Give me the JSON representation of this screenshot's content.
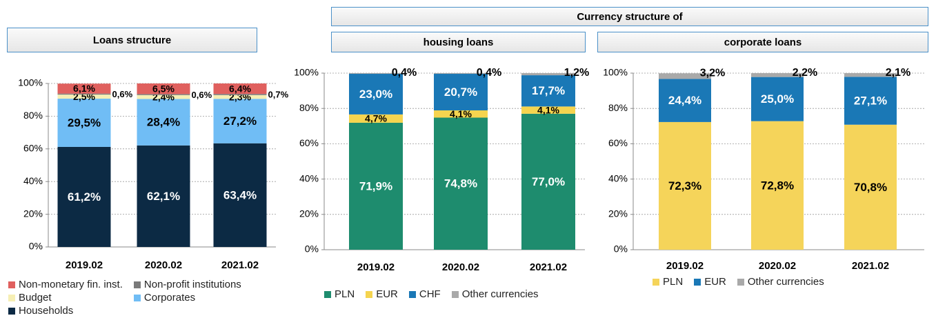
{
  "header": "Currency structure of",
  "chart_data": [
    {
      "type": "bar",
      "stacked": true,
      "title": "Loans structure",
      "categories": [
        "2019.02",
        "2020.02",
        "2021.02"
      ],
      "ylim": [
        0,
        100
      ],
      "yticks": [
        {
          "value": 0,
          "label": "0%"
        },
        {
          "value": 20,
          "label": "20%"
        },
        {
          "value": 40,
          "label": "40%"
        },
        {
          "value": 60,
          "label": "60%"
        },
        {
          "value": 80,
          "label": "80%"
        },
        {
          "value": 100,
          "label": "100%"
        }
      ],
      "grid": true,
      "series": [
        {
          "name": "Households",
          "color": "#0c2a44",
          "values": [
            61.2,
            62.1,
            63.4
          ],
          "value_labels": [
            "61,2%",
            "62,1%",
            "63,4%"
          ]
        },
        {
          "name": "Corporates",
          "color": "#70bdf5",
          "values": [
            29.5,
            28.4,
            27.2
          ],
          "value_labels": [
            "29,5%",
            "28,4%",
            "27,2%"
          ]
        },
        {
          "name": "Budget",
          "color": "#f6efb4",
          "values": [
            2.5,
            2.4,
            2.3
          ],
          "value_labels": [
            "2,5%",
            "2,4%",
            "2,3%"
          ]
        },
        {
          "name": "Non-profit institutions",
          "color": "#7a7a7a",
          "values": [
            0.6,
            0.6,
            0.7
          ],
          "value_labels": [
            "0,6%",
            "0,6%",
            "0,7%"
          ]
        },
        {
          "name": "Non-monetary fin. inst.",
          "color": "#e0605e",
          "values": [
            6.1,
            6.5,
            6.4
          ],
          "value_labels": [
            "6,1%",
            "6,5%",
            "6,4%"
          ]
        }
      ]
    },
    {
      "type": "bar",
      "stacked": true,
      "title": "housing loans",
      "categories": [
        "2019.02",
        "2020.02",
        "2021.02"
      ],
      "ylim": [
        0,
        100
      ],
      "yticks": [
        {
          "value": 0,
          "label": "0%"
        },
        {
          "value": 20,
          "label": "20%"
        },
        {
          "value": 40,
          "label": "40%"
        },
        {
          "value": 60,
          "label": "60%"
        },
        {
          "value": 80,
          "label": "80%"
        },
        {
          "value": 100,
          "label": "100%"
        }
      ],
      "grid": true,
      "series": [
        {
          "name": "PLN",
          "color": "#1e8c6e",
          "values": [
            71.9,
            74.8,
            77.0
          ],
          "value_labels": [
            "71,9%",
            "74,8%",
            "77,0%"
          ]
        },
        {
          "name": "EUR",
          "color": "#f5d44f",
          "values": [
            4.7,
            4.1,
            4.1
          ],
          "value_labels": [
            "4,7%",
            "4,1%",
            "4,1%"
          ]
        },
        {
          "name": "CHF",
          "color": "#1a78b6",
          "values": [
            23.0,
            20.7,
            17.7
          ],
          "value_labels": [
            "23,0%",
            "20,7%",
            "17,7%"
          ]
        },
        {
          "name": "Other currencies",
          "color": "#a9a9a9",
          "values": [
            0.4,
            0.4,
            1.2
          ],
          "value_labels": [
            "0,4%",
            "0,4%",
            "1,2%"
          ]
        }
      ]
    },
    {
      "type": "bar",
      "stacked": true,
      "title": "corporate loans",
      "categories": [
        "2019.02",
        "2020.02",
        "2021.02"
      ],
      "ylim": [
        0,
        100
      ],
      "yticks": [
        {
          "value": 0,
          "label": "0%"
        },
        {
          "value": 20,
          "label": "20%"
        },
        {
          "value": 40,
          "label": "40%"
        },
        {
          "value": 60,
          "label": "60%"
        },
        {
          "value": 80,
          "label": "80%"
        },
        {
          "value": 100,
          "label": "100%"
        }
      ],
      "grid": true,
      "series": [
        {
          "name": "PLN",
          "color": "#f5d45a",
          "values": [
            72.3,
            72.8,
            70.8
          ],
          "value_labels": [
            "72,3%",
            "72,8%",
            "70,8%"
          ]
        },
        {
          "name": "EUR",
          "color": "#1a78b6",
          "values": [
            24.4,
            25.0,
            27.1
          ],
          "value_labels": [
            "24,4%",
            "25,0%",
            "27,1%"
          ]
        },
        {
          "name": "Other currencies",
          "color": "#a9a9a9",
          "values": [
            3.2,
            2.2,
            2.1
          ],
          "value_labels": [
            "3,2%",
            "2,2%",
            "2,1%"
          ]
        }
      ]
    }
  ]
}
